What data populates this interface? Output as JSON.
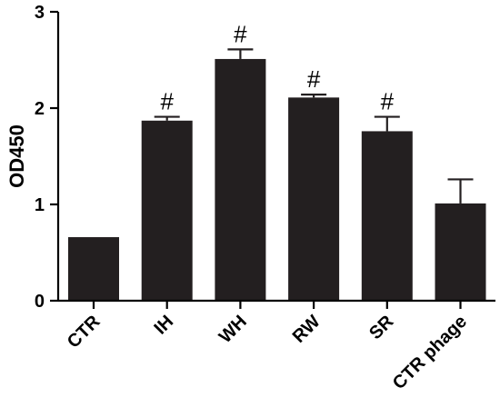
{
  "chart_data": {
    "type": "bar",
    "ylabel": "OD450",
    "xlabel": "",
    "ylim": [
      0,
      3
    ],
    "yticks": [
      "0",
      "1",
      "2",
      "3"
    ],
    "categories": [
      "CTR",
      "IH",
      "WH",
      "RW",
      "SR",
      "CTR phage"
    ],
    "values": [
      0.66,
      1.87,
      2.51,
      2.11,
      1.76,
      1.01
    ],
    "errors": [
      0.01,
      0.04,
      0.1,
      0.03,
      0.15,
      0.25
    ],
    "annotations": [
      "",
      "#",
      "#",
      "#",
      "#",
      ""
    ],
    "grid": false,
    "legend": "none",
    "bar_color": "#231f20"
  }
}
